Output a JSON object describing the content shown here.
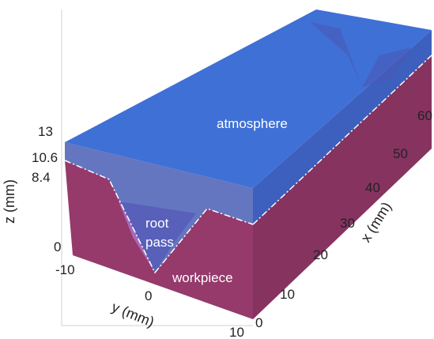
{
  "colors": {
    "atmosphere": "#2f5fcf",
    "workpiece": "#8a2a5c",
    "root_pass": "#b07ad6",
    "groove_line": "#ffffff"
  },
  "regions": {
    "atmosphere": "atmosphere",
    "root_pass_line1": "root",
    "root_pass_line2": "pass",
    "workpiece": "workpiece"
  },
  "z_axis": {
    "title": "z (mm)",
    "ticks": [
      "13",
      "10.6",
      "8.4",
      "0"
    ]
  },
  "y_axis": {
    "title": "y (mm)",
    "ticks": [
      "-10",
      "0",
      "10"
    ]
  },
  "x_axis": {
    "title": "x (mm)",
    "ticks": [
      "0",
      "10",
      "20",
      "30",
      "40",
      "50",
      "60"
    ]
  }
}
